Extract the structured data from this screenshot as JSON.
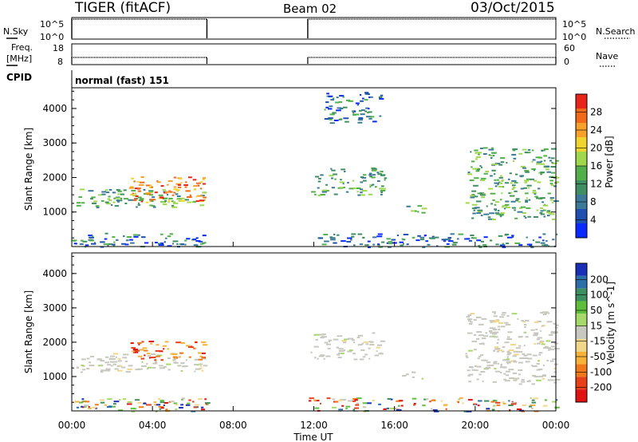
{
  "header": {
    "radar": "TIGER (fitACF)",
    "beam": "Beam 02",
    "date": "03/Oct/2015"
  },
  "top_panels": {
    "nsky_label": "N.Sky",
    "nsky_ticks": [
      "10^5",
      "10^0"
    ],
    "nsearch_label": "N.Search",
    "freq_label_line1": "Freq.",
    "freq_label_line2": "[MHz]",
    "freq_ticks": [
      "18",
      "8"
    ],
    "nave_label": "Nave",
    "nave_ticks": [
      "60",
      "0"
    ],
    "cpid_label": "CPID",
    "cpid_text": "normal (fast) 151"
  },
  "chart_data": [
    {
      "type": "heatmap",
      "name": "power",
      "ylabel": "Slant Range [km]",
      "ylim": [
        0,
        4600
      ],
      "yticks": [
        1000,
        2000,
        3000,
        4000
      ],
      "xlim": [
        0,
        24
      ],
      "colorbar": {
        "label": "Power [dB]",
        "ticks": [
          "4",
          "8",
          "12",
          "16",
          "20",
          "24",
          "28"
        ],
        "colors": [
          "#0a2bff",
          "#1f4fb0",
          "#3d7a9a",
          "#3f8f62",
          "#52b04a",
          "#9fd84d",
          "#f2d430",
          "#f7a02a",
          "#f06a1a",
          "#e8251a"
        ]
      },
      "data_gaps_ut": [
        [
          6.7,
          11.7
        ]
      ],
      "echo_regions": [
        {
          "t": [
            0.2,
            6.6
          ],
          "r": [
            1150,
            1700
          ],
          "level": "mid"
        },
        {
          "t": [
            2.8,
            6.6
          ],
          "r": [
            1300,
            2050
          ],
          "level": "high"
        },
        {
          "t": [
            11.8,
            15.5
          ],
          "r": [
            1500,
            2300
          ],
          "level": "mid"
        },
        {
          "t": [
            12.5,
            15.3
          ],
          "r": [
            3600,
            4500
          ],
          "level": "low"
        },
        {
          "t": [
            16.3,
            17.4
          ],
          "r": [
            950,
            1200
          ],
          "level": "mid"
        },
        {
          "t": [
            19.5,
            24.0
          ],
          "r": [
            800,
            2900
          ],
          "level": "mid"
        },
        {
          "t": [
            0.0,
            24.0
          ],
          "r": [
            0,
            400
          ],
          "level": "low"
        }
      ]
    },
    {
      "type": "heatmap",
      "name": "velocity",
      "ylabel": "Slant Range [km]",
      "ylim": [
        0,
        4600
      ],
      "yticks": [
        1000,
        2000,
        3000,
        4000
      ],
      "xlabel": "Time UT",
      "xticks": [
        "00:00",
        "04:00",
        "08:00",
        "12:00",
        "16:00",
        "20:00",
        "00:00"
      ],
      "xlim": [
        0,
        24
      ],
      "colorbar": {
        "label": "Velocity [m s^-1]",
        "ticks": [
          "200",
          "100",
          "50",
          "15",
          "-15",
          "-50",
          "-100",
          "-200"
        ],
        "colors": [
          "#1a2fb8",
          "#2b6fa8",
          "#3c8f5e",
          "#5fbf3c",
          "#a6d96a",
          "#c8c8c0",
          "#f2d78a",
          "#f7b23a",
          "#f07a1a",
          "#e8401a",
          "#e01212"
        ]
      },
      "data_gaps_ut": [
        [
          6.7,
          11.7
        ]
      ],
      "echo_regions": [
        {
          "t": [
            0.2,
            6.6
          ],
          "r": [
            1150,
            1700
          ],
          "level": "zero"
        },
        {
          "t": [
            2.8,
            6.6
          ],
          "r": [
            1500,
            2050
          ],
          "level": "negative"
        },
        {
          "t": [
            11.8,
            15.5
          ],
          "r": [
            1500,
            2300
          ],
          "level": "zero"
        },
        {
          "t": [
            16.3,
            17.4
          ],
          "r": [
            950,
            1200
          ],
          "level": "zero"
        },
        {
          "t": [
            19.5,
            24.0
          ],
          "r": [
            800,
            2900
          ],
          "level": "zero"
        },
        {
          "t": [
            0.0,
            24.0
          ],
          "r": [
            0,
            400
          ],
          "level": "mixed"
        }
      ]
    }
  ]
}
